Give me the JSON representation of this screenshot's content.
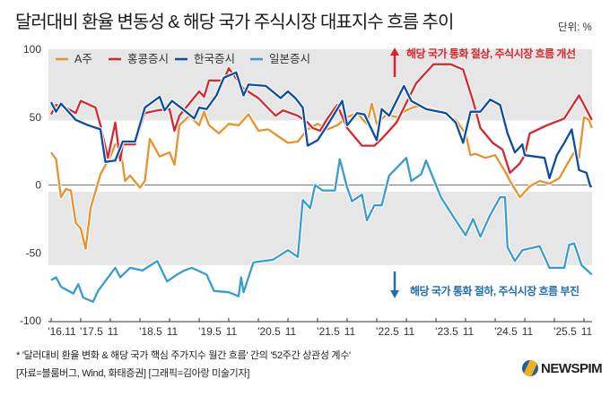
{
  "title": "달러대비 환율 변동성 & 해당 국가 주식시장 대표지수 흐름 추이",
  "unit": "단위: %",
  "annotations": {
    "up": "해당 국가 통화 절상, 주식시장 흐름 개선",
    "down": "해당 국가 통화 절하, 주식시장 흐름 부진",
    "up_color": "#d9262c",
    "down_color": "#1f6fb0"
  },
  "footnote": "* '달러대비 환율 변화 & 해당 국가 핵심 주가지수 월간 흐름' 간의 '52주간 상관성 계수'",
  "source": "[자료=블룸버그, Wind, 화태증권] [그래픽=김아랑 미술기자]",
  "logo": "NEWSPIM",
  "chart_data": {
    "type": "line",
    "title": "달러대비 환율 변동성 & 해당 국가 주식시장 대표지수 흐름 추이",
    "x_unit": "months since 2016.11",
    "ylim": [
      -100,
      100
    ],
    "yticks": [
      100,
      50,
      0,
      -50,
      -100
    ],
    "xticks": [
      {
        "m": 0,
        "label": "'16.11"
      },
      {
        "m": 6,
        "label": "'17.5"
      },
      {
        "m": 12,
        "label": "11"
      },
      {
        "m": 18,
        "label": "'18.5"
      },
      {
        "m": 24,
        "label": "11"
      },
      {
        "m": 30,
        "label": "'19.5"
      },
      {
        "m": 36,
        "label": "11"
      },
      {
        "m": 42,
        "label": "'20.5"
      },
      {
        "m": 48,
        "label": "11"
      },
      {
        "m": 54,
        "label": "'21.5"
      },
      {
        "m": 60,
        "label": "11"
      },
      {
        "m": 66,
        "label": "'22.5"
      },
      {
        "m": 72,
        "label": "11"
      },
      {
        "m": 78,
        "label": "'23.5"
      },
      {
        "m": 84,
        "label": "11"
      },
      {
        "m": 90,
        "label": "'24.5"
      },
      {
        "m": 96,
        "label": "11"
      },
      {
        "m": 102,
        "label": "'25.5"
      },
      {
        "m": 108,
        "label": "11"
      }
    ],
    "bands": [
      [
        47.5,
        100
      ],
      [
        -59,
        -5
      ]
    ],
    "legend_position": "top-left",
    "series": [
      {
        "name": "A주",
        "color": "#e8922e",
        "points": [
          [
            0,
            24
          ],
          [
            1,
            19
          ],
          [
            2,
            -9
          ],
          [
            3,
            -3
          ],
          [
            4,
            -4
          ],
          [
            5,
            -28
          ],
          [
            6,
            -32
          ],
          [
            7,
            -47
          ],
          [
            8,
            -17
          ],
          [
            10,
            8
          ],
          [
            12,
            21
          ],
          [
            13,
            30
          ],
          [
            14,
            28
          ],
          [
            15,
            3
          ],
          [
            16,
            7
          ],
          [
            18,
            -2
          ],
          [
            19,
            3
          ],
          [
            20,
            34
          ],
          [
            22,
            21
          ],
          [
            24,
            24
          ],
          [
            25,
            15
          ],
          [
            26,
            44
          ],
          [
            28,
            51
          ],
          [
            30,
            44
          ],
          [
            31,
            54
          ],
          [
            32,
            44
          ],
          [
            34,
            38
          ],
          [
            36,
            45
          ],
          [
            38,
            44
          ],
          [
            40,
            52
          ],
          [
            42,
            40
          ],
          [
            44,
            41
          ],
          [
            46,
            36
          ],
          [
            48,
            31
          ],
          [
            50,
            32
          ],
          [
            52,
            41
          ],
          [
            54,
            45
          ],
          [
            56,
            41
          ],
          [
            58,
            44
          ],
          [
            60,
            50
          ],
          [
            62,
            53
          ],
          [
            64,
            45
          ],
          [
            65,
            60
          ],
          [
            66,
            45
          ],
          [
            68,
            52
          ],
          [
            70,
            50
          ],
          [
            72,
            55
          ],
          [
            74,
            58
          ],
          [
            76,
            57
          ],
          [
            78,
            55
          ],
          [
            80,
            52
          ],
          [
            82,
            48
          ],
          [
            84,
            38
          ],
          [
            85,
            22
          ],
          [
            86,
            23
          ],
          [
            88,
            20
          ],
          [
            90,
            22
          ],
          [
            92,
            10
          ],
          [
            93,
            3
          ],
          [
            95,
            -9
          ],
          [
            97,
            -1
          ],
          [
            99,
            3
          ],
          [
            101,
            1
          ],
          [
            103,
            5
          ],
          [
            105,
            18
          ],
          [
            106,
            24
          ],
          [
            107,
            20
          ],
          [
            108,
            50
          ],
          [
            109,
            48
          ],
          [
            109.6,
            42
          ]
        ]
      },
      {
        "name": "홍콩증시",
        "color": "#d9262c",
        "points": [
          [
            0,
            52
          ],
          [
            1,
            59
          ],
          [
            3,
            57
          ],
          [
            5,
            53
          ],
          [
            6,
            62
          ],
          [
            9,
            57
          ],
          [
            10,
            44
          ],
          [
            11.5,
            20
          ],
          [
            13,
            46
          ],
          [
            14,
            18
          ],
          [
            14.5,
            30
          ],
          [
            17,
            30
          ],
          [
            19,
            53
          ],
          [
            21.5,
            55
          ],
          [
            24,
            56
          ],
          [
            25,
            40
          ],
          [
            26,
            51
          ],
          [
            28,
            60
          ],
          [
            30,
            69
          ],
          [
            31,
            65
          ],
          [
            32,
            77
          ],
          [
            35,
            77
          ],
          [
            36,
            86
          ],
          [
            39,
            71
          ],
          [
            42,
            64
          ],
          [
            45.5,
            51
          ],
          [
            47,
            55
          ],
          [
            50,
            51
          ],
          [
            52,
            46
          ],
          [
            53,
            42
          ],
          [
            54.5,
            40
          ],
          [
            56,
            49
          ],
          [
            58,
            59
          ],
          [
            60,
            42
          ],
          [
            63,
            29
          ],
          [
            65.5,
            29
          ],
          [
            67,
            34
          ],
          [
            70,
            46
          ],
          [
            74,
            75
          ],
          [
            77.5,
            89
          ],
          [
            81,
            89
          ],
          [
            83.5,
            85
          ],
          [
            85.5,
            62
          ],
          [
            87,
            42
          ],
          [
            89.5,
            31
          ],
          [
            91.5,
            26
          ],
          [
            93,
            9
          ],
          [
            95,
            16
          ],
          [
            96,
            22
          ],
          [
            97,
            38
          ],
          [
            100.5,
            44
          ],
          [
            104,
            49
          ],
          [
            107,
            66
          ],
          [
            109.6,
            48
          ]
        ]
      },
      {
        "name": "한국증시",
        "color": "#0a4da2",
        "points": [
          [
            0,
            61
          ],
          [
            1,
            54
          ],
          [
            2,
            60
          ],
          [
            5,
            48
          ],
          [
            7.5,
            44
          ],
          [
            10,
            41
          ],
          [
            11,
            17
          ],
          [
            13,
            18
          ],
          [
            14.5,
            32
          ],
          [
            17,
            32
          ],
          [
            19,
            57
          ],
          [
            22,
            65
          ],
          [
            23,
            55
          ],
          [
            24.5,
            62
          ],
          [
            27,
            55
          ],
          [
            29,
            49
          ],
          [
            30,
            57
          ],
          [
            31.5,
            56
          ],
          [
            33.5,
            66
          ],
          [
            35,
            79
          ],
          [
            37.5,
            83
          ],
          [
            39,
            66
          ],
          [
            40,
            74
          ],
          [
            43.5,
            73
          ],
          [
            46.5,
            64
          ],
          [
            48,
            69
          ],
          [
            49.5,
            64
          ],
          [
            51,
            57
          ],
          [
            52,
            29
          ],
          [
            54,
            33
          ],
          [
            56,
            44
          ],
          [
            59,
            62
          ],
          [
            60,
            44
          ],
          [
            62,
            53
          ],
          [
            63.5,
            52
          ],
          [
            66,
            33
          ],
          [
            67,
            56
          ],
          [
            68.5,
            51
          ],
          [
            71.5,
            73
          ],
          [
            73,
            62
          ],
          [
            76,
            56
          ],
          [
            80,
            53
          ],
          [
            82,
            46
          ],
          [
            83.5,
            31
          ],
          [
            85,
            54
          ],
          [
            87,
            54
          ],
          [
            89,
            63
          ],
          [
            91,
            59
          ],
          [
            92.5,
            38
          ],
          [
            94,
            24
          ],
          [
            95.5,
            30
          ],
          [
            96,
            22
          ],
          [
            100,
            20
          ],
          [
            101,
            5
          ],
          [
            102.5,
            22
          ],
          [
            104,
            31
          ],
          [
            105.5,
            41
          ],
          [
            107,
            11
          ],
          [
            108.5,
            9
          ],
          [
            109.3,
            -1
          ],
          [
            109.6,
            -1
          ]
        ]
      },
      {
        "name": "일본증시",
        "color": "#3a9bd2",
        "points": [
          [
            0,
            -70
          ],
          [
            1,
            -68
          ],
          [
            2,
            -75
          ],
          [
            4.5,
            -80
          ],
          [
            5.5,
            -73
          ],
          [
            6.5,
            -83
          ],
          [
            8.5,
            -86
          ],
          [
            9.5,
            -78
          ],
          [
            13,
            -61
          ],
          [
            14,
            -68
          ],
          [
            16,
            -61
          ],
          [
            18.5,
            -63
          ],
          [
            21.5,
            -56
          ],
          [
            23.5,
            -71
          ],
          [
            25.5,
            -66
          ],
          [
            27,
            -63
          ],
          [
            28.5,
            -61
          ],
          [
            31.5,
            -66
          ],
          [
            33,
            -78
          ],
          [
            36,
            -79
          ],
          [
            38,
            -82
          ],
          [
            38.5,
            -68
          ],
          [
            39,
            -79
          ],
          [
            41,
            -57
          ],
          [
            45,
            -55
          ],
          [
            48,
            -48
          ],
          [
            50,
            -53
          ],
          [
            51,
            -11
          ],
          [
            52.5,
            -17
          ],
          [
            53.5,
            0
          ],
          [
            55,
            -4
          ],
          [
            57.5,
            -4
          ],
          [
            58.5,
            19
          ],
          [
            60,
            -2
          ],
          [
            61,
            -12
          ],
          [
            63,
            -7
          ],
          [
            64,
            -26
          ],
          [
            65.5,
            -15
          ],
          [
            67,
            -15
          ],
          [
            68.5,
            7
          ],
          [
            72,
            20
          ],
          [
            73,
            3
          ],
          [
            75,
            8
          ],
          [
            76,
            18
          ],
          [
            79,
            -9
          ],
          [
            82,
            -26
          ],
          [
            84,
            -37
          ],
          [
            85.5,
            -25
          ],
          [
            87,
            -38
          ],
          [
            89,
            -22
          ],
          [
            91,
            -9
          ],
          [
            92,
            -9
          ],
          [
            92.5,
            -46
          ],
          [
            94,
            -56
          ],
          [
            95.5,
            -48
          ],
          [
            99,
            -45
          ],
          [
            101,
            -61
          ],
          [
            104,
            -61
          ],
          [
            105,
            -44
          ],
          [
            106,
            -43
          ],
          [
            107.5,
            -59
          ],
          [
            109.6,
            -66
          ]
        ]
      }
    ]
  }
}
